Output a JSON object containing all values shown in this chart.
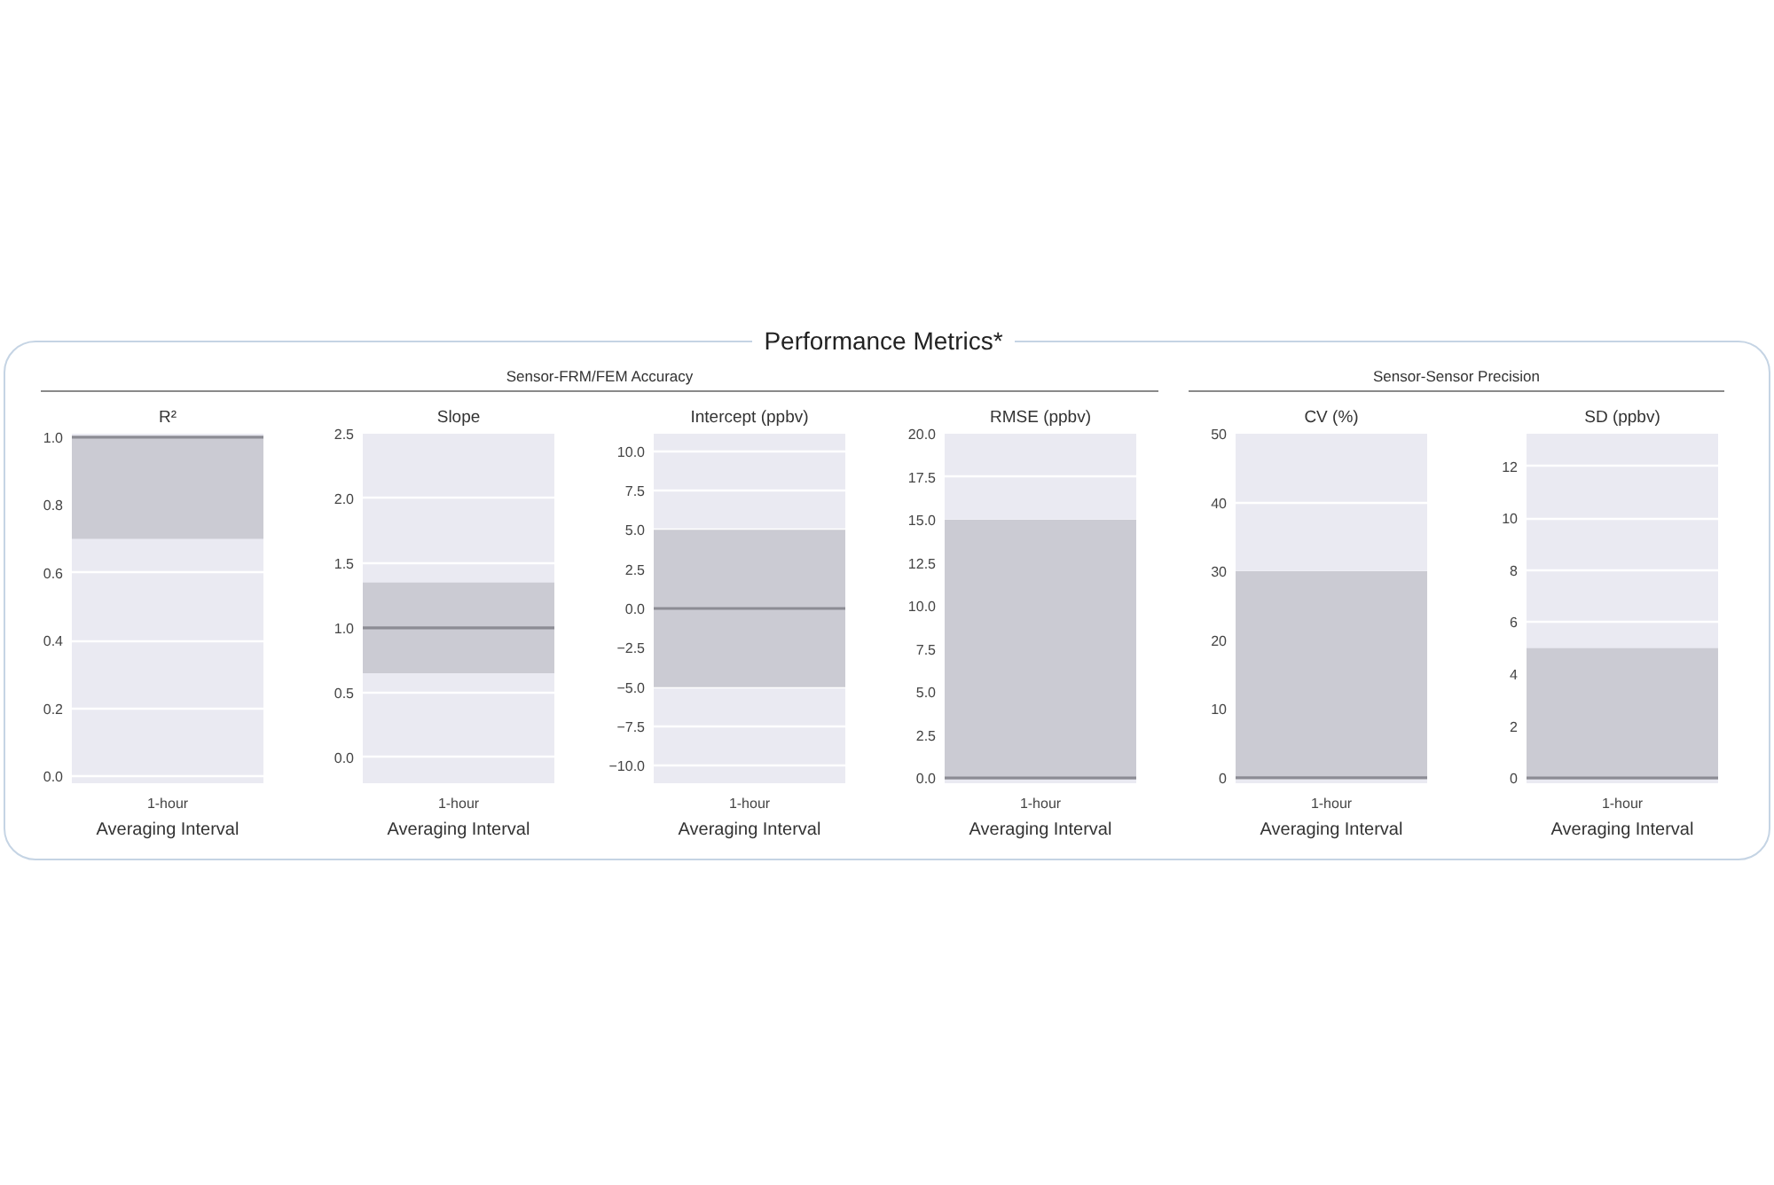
{
  "chart_data": [
    {
      "type": "bar",
      "title": "R²",
      "annotations": [
        "Performance Metrics*",
        "Sensor-FRM/FEM Accuracy"
      ],
      "xlabel": "Averaging Interval",
      "categories": [
        "1-hour"
      ],
      "values": [
        0.3
      ],
      "base": [
        0.7
      ],
      "color": "#cbcbd3",
      "ylim": [
        -0.02,
        1.01
      ],
      "yticks": [
        {
          "value": 0,
          "label": "0.0"
        },
        0.2,
        0.4,
        0.6,
        0.8,
        {
          "value": 1,
          "label": "1.0"
        }
      ],
      "ref_lines": [
        {
          "axis": "y",
          "value": 1.0,
          "color": "#8c8c94"
        }
      ],
      "grid": "y"
    },
    {
      "type": "bar",
      "title": "Slope",
      "xlabel": "Averaging Interval",
      "categories": [
        "1-hour"
      ],
      "values": [
        0.7
      ],
      "base": [
        0.65
      ],
      "color": "#cbcbd3",
      "ylim": [
        -0.2,
        2.5
      ],
      "yticks": [
        {
          "value": 0,
          "label": "0.0"
        },
        0.5,
        {
          "value": 1,
          "label": "1.0"
        },
        1.5,
        {
          "value": 2,
          "label": "2.0"
        },
        2.5
      ],
      "ref_lines": [
        {
          "axis": "y",
          "value": 1.0,
          "color": "#8c8c94"
        }
      ],
      "grid": "y"
    },
    {
      "type": "bar",
      "title": "Intercept (ppbv)",
      "xlabel": "Averaging Interval",
      "categories": [
        "1-hour"
      ],
      "values": [
        10
      ],
      "base": [
        -5
      ],
      "color": "#cbcbd3",
      "ylim": [
        -11.1,
        11.1
      ],
      "yticks": [
        {
          "value": -10,
          "label": "−10.0"
        },
        {
          "value": -7.5,
          "label": "−7.5"
        },
        {
          "value": -5,
          "label": "−5.0"
        },
        {
          "value": -2.5,
          "label": "−2.5"
        },
        {
          "value": 0,
          "label": "0.0"
        },
        2.5,
        {
          "value": 5,
          "label": "5.0"
        },
        7.5,
        {
          "value": 10,
          "label": "10.0"
        }
      ],
      "ref_lines": [
        {
          "axis": "y",
          "value": 0,
          "color": "#8c8c94"
        }
      ],
      "grid": "y"
    },
    {
      "type": "bar",
      "title": "RMSE (ppbv)",
      "xlabel": "Averaging Interval",
      "categories": [
        "1-hour"
      ],
      "values": [
        15
      ],
      "color": "#cbcbd3",
      "ylim": [
        -0.3,
        20
      ],
      "yticks": [
        {
          "value": 0,
          "label": "0.0"
        },
        2.5,
        {
          "value": 5,
          "label": "5.0"
        },
        7.5,
        {
          "value": 10,
          "label": "10.0"
        },
        12.5,
        {
          "value": 15,
          "label": "15.0"
        },
        17.5,
        {
          "value": 20,
          "label": "20.0"
        }
      ],
      "ref_lines": [
        {
          "axis": "y",
          "value": 0,
          "color": "#8c8c94"
        }
      ],
      "grid": "y"
    },
    {
      "type": "bar",
      "title": "CV (%)",
      "annotations": [
        "Sensor-Sensor Precision"
      ],
      "xlabel": "Averaging Interval",
      "categories": [
        "1-hour"
      ],
      "values": [
        30
      ],
      "color": "#cbcbd3",
      "ylim": [
        -0.8,
        50
      ],
      "yticks": [
        0,
        10,
        20,
        30,
        40,
        50
      ],
      "ref_lines": [
        {
          "axis": "y",
          "value": 0,
          "color": "#8c8c94"
        }
      ],
      "grid": "y"
    },
    {
      "type": "bar",
      "title": "SD (ppbv)",
      "xlabel": "Averaging Interval",
      "categories": [
        "1-hour"
      ],
      "values": [
        5
      ],
      "color": "#cbcbd3",
      "ylim": [
        -0.2,
        13.25
      ],
      "yticks": [
        0,
        2,
        4,
        6,
        8,
        10,
        12
      ],
      "ref_lines": [
        {
          "axis": "y",
          "value": 0,
          "color": "#8c8c94"
        }
      ],
      "grid": "y"
    }
  ]
}
